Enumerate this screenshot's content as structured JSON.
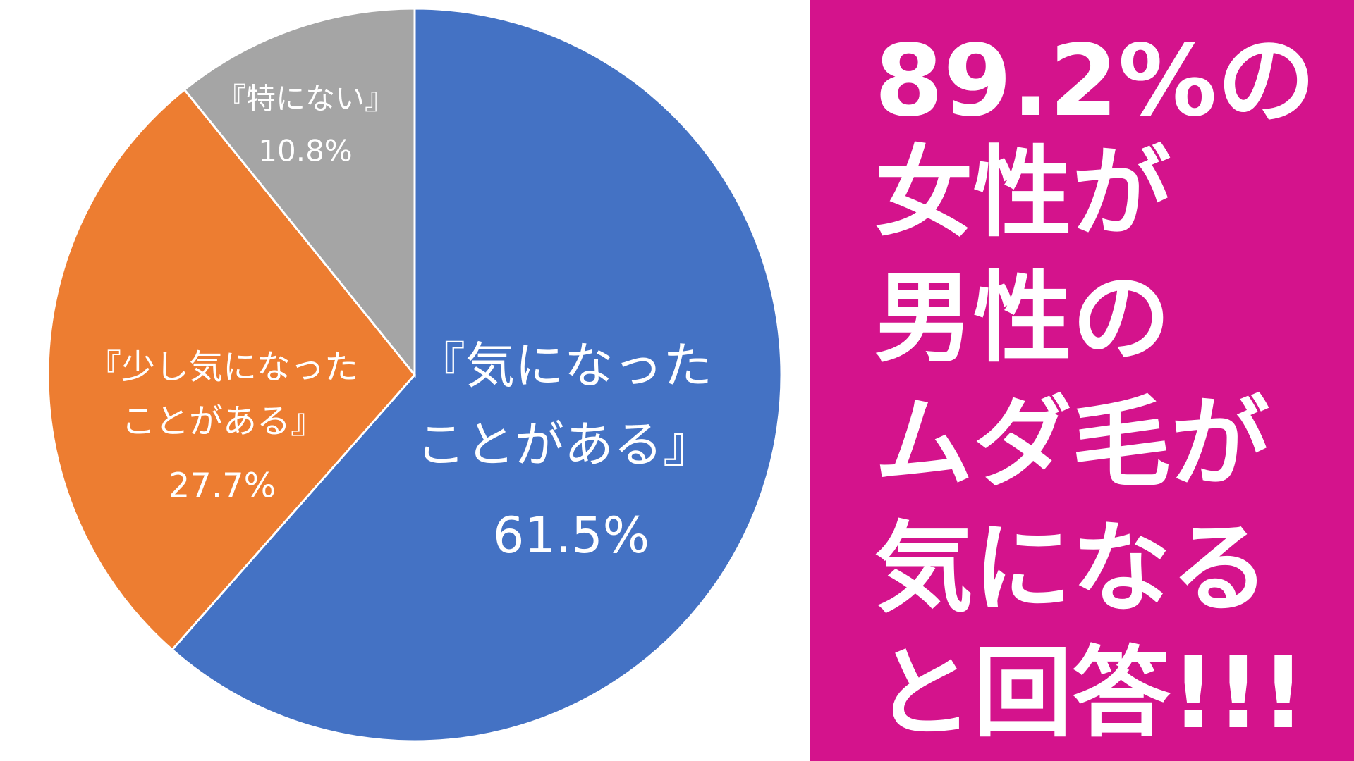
{
  "chart_data": {
    "type": "pie",
    "categories": [
      "『気になった\nことがある』",
      "『少し気になった\nことがある』",
      "『特にない』"
    ],
    "values": [
      61.5,
      27.7,
      10.8
    ],
    "value_labels": [
      "61.5%",
      "27.7%",
      "10.8%"
    ],
    "colors": [
      "#4472c4",
      "#ed7d31",
      "#a5a5a5"
    ]
  },
  "headline_lines": [
    "89.2%の",
    "女性が",
    "男性の",
    "ムダ毛が",
    "気になる",
    "と回答!!!"
  ]
}
